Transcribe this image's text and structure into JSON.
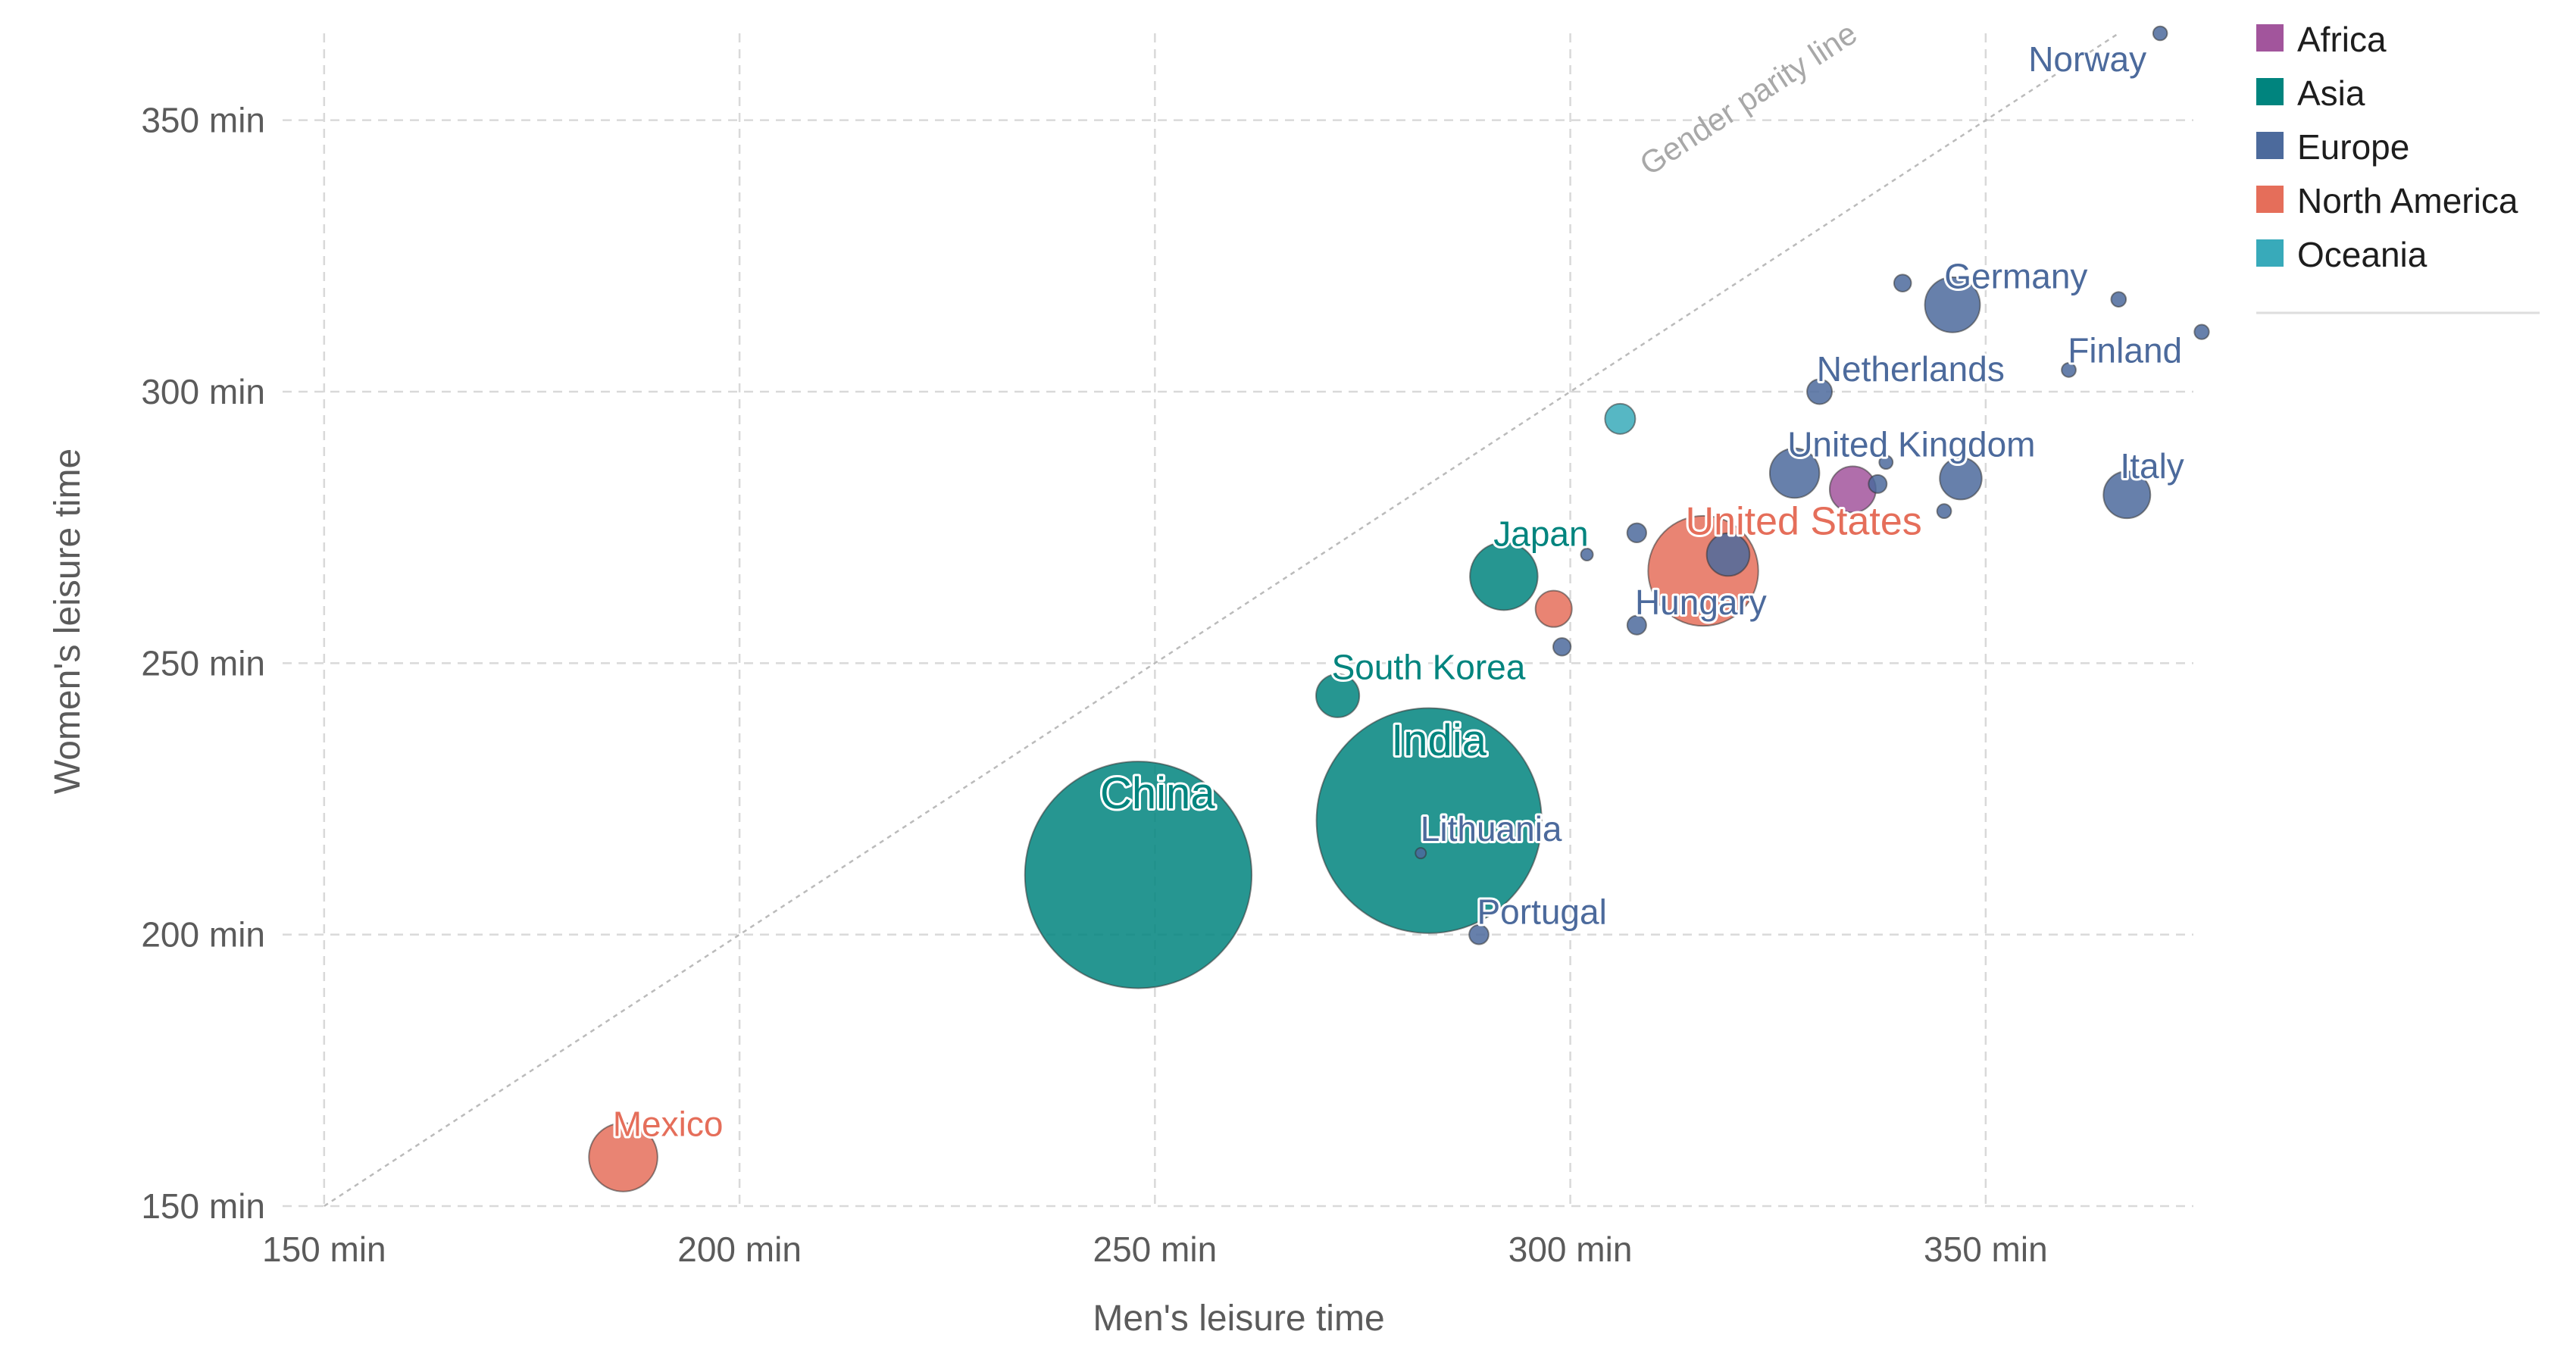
{
  "colors": {
    "Africa": "#a2559c",
    "Asia": "#00847e",
    "Europe": "#4c6a9c",
    "North America": "#e56e5a",
    "Oceania": "#38aaba"
  },
  "chart_data": {
    "type": "scatter",
    "xlabel": "Men's leisure time",
    "ylabel": "Women's leisure time",
    "xlim": [
      145,
      375
    ],
    "ylim": [
      150,
      366
    ],
    "x_ticks": [
      150,
      200,
      250,
      300,
      350
    ],
    "y_ticks": [
      150,
      200,
      250,
      300,
      350
    ],
    "x_tick_labels": [
      "150 min",
      "200 min",
      "250 min",
      "300 min",
      "350 min"
    ],
    "y_tick_labels": [
      "150 min",
      "200 min",
      "250 min",
      "300 min",
      "350 min"
    ],
    "parity_label": "Gender parity line",
    "legend": {
      "placement": "top-right",
      "entries": [
        "Africa",
        "Asia",
        "Europe",
        "North America",
        "Oceania"
      ]
    },
    "points": [
      {
        "label": "China",
        "region": "Asia",
        "x": 248,
        "y": 211,
        "size": 1400
      },
      {
        "label": "India",
        "region": "Asia",
        "x": 283,
        "y": 221,
        "size": 1380
      },
      {
        "label": "Japan",
        "region": "Asia",
        "x": 292,
        "y": 266,
        "size": 125
      },
      {
        "label": "South Korea",
        "region": "Asia",
        "x": 272,
        "y": 244,
        "size": 51
      },
      {
        "label": "Mexico",
        "region": "North America",
        "x": 186,
        "y": 159,
        "size": 128
      },
      {
        "label": "United States",
        "region": "North America",
        "x": 316,
        "y": 267,
        "size": 330
      },
      {
        "label": "",
        "region": "North America",
        "x": 298,
        "y": 260,
        "size": 36
      },
      {
        "label": "Norway",
        "region": "Europe",
        "x": 371,
        "y": 366,
        "size": 5.4
      },
      {
        "label": "Germany",
        "region": "Europe",
        "x": 346,
        "y": 316,
        "size": 83
      },
      {
        "label": "Finland",
        "region": "Europe",
        "x": 360,
        "y": 304,
        "size": 5.5
      },
      {
        "label": "Netherlands",
        "region": "Europe",
        "x": 330,
        "y": 300,
        "size": 17
      },
      {
        "label": "United Kingdom",
        "region": "Europe",
        "x": 327,
        "y": 285,
        "size": 67
      },
      {
        "label": "Italy",
        "region": "Europe",
        "x": 367,
        "y": 281,
        "size": 60
      },
      {
        "label": "Hungary",
        "region": "Europe",
        "x": 308,
        "y": 257,
        "size": 9.8
      },
      {
        "label": "Lithuania",
        "region": "Europe",
        "x": 282,
        "y": 215,
        "size": 2.8
      },
      {
        "label": "Portugal",
        "region": "Europe",
        "x": 289,
        "y": 200,
        "size": 10.3
      },
      {
        "label": "",
        "region": "Europe",
        "x": 340,
        "y": 320,
        "size": 8
      },
      {
        "label": "",
        "region": "Europe",
        "x": 366,
        "y": 317,
        "size": 6
      },
      {
        "label": "",
        "region": "Europe",
        "x": 376,
        "y": 311,
        "size": 5.8
      },
      {
        "label": "",
        "region": "Europe",
        "x": 337,
        "y": 283,
        "size": 9
      },
      {
        "label": "",
        "region": "Europe",
        "x": 338,
        "y": 287,
        "size": 5
      },
      {
        "label": "",
        "region": "Europe",
        "x": 347,
        "y": 284,
        "size": 48
      },
      {
        "label": "",
        "region": "Europe",
        "x": 345,
        "y": 278,
        "size": 5.5
      },
      {
        "label": "",
        "region": "Europe",
        "x": 308,
        "y": 274,
        "size": 10
      },
      {
        "label": "",
        "region": "Europe",
        "x": 319,
        "y": 270,
        "size": 50
      },
      {
        "label": "",
        "region": "Europe",
        "x": 299,
        "y": 253,
        "size": 8.5
      },
      {
        "label": "",
        "region": "Europe",
        "x": 302,
        "y": 270,
        "size": 4
      },
      {
        "label": "",
        "region": "Africa",
        "x": 334,
        "y": 282,
        "size": 58
      },
      {
        "label": "",
        "region": "Oceania",
        "x": 306,
        "y": 295,
        "size": 25
      }
    ]
  }
}
